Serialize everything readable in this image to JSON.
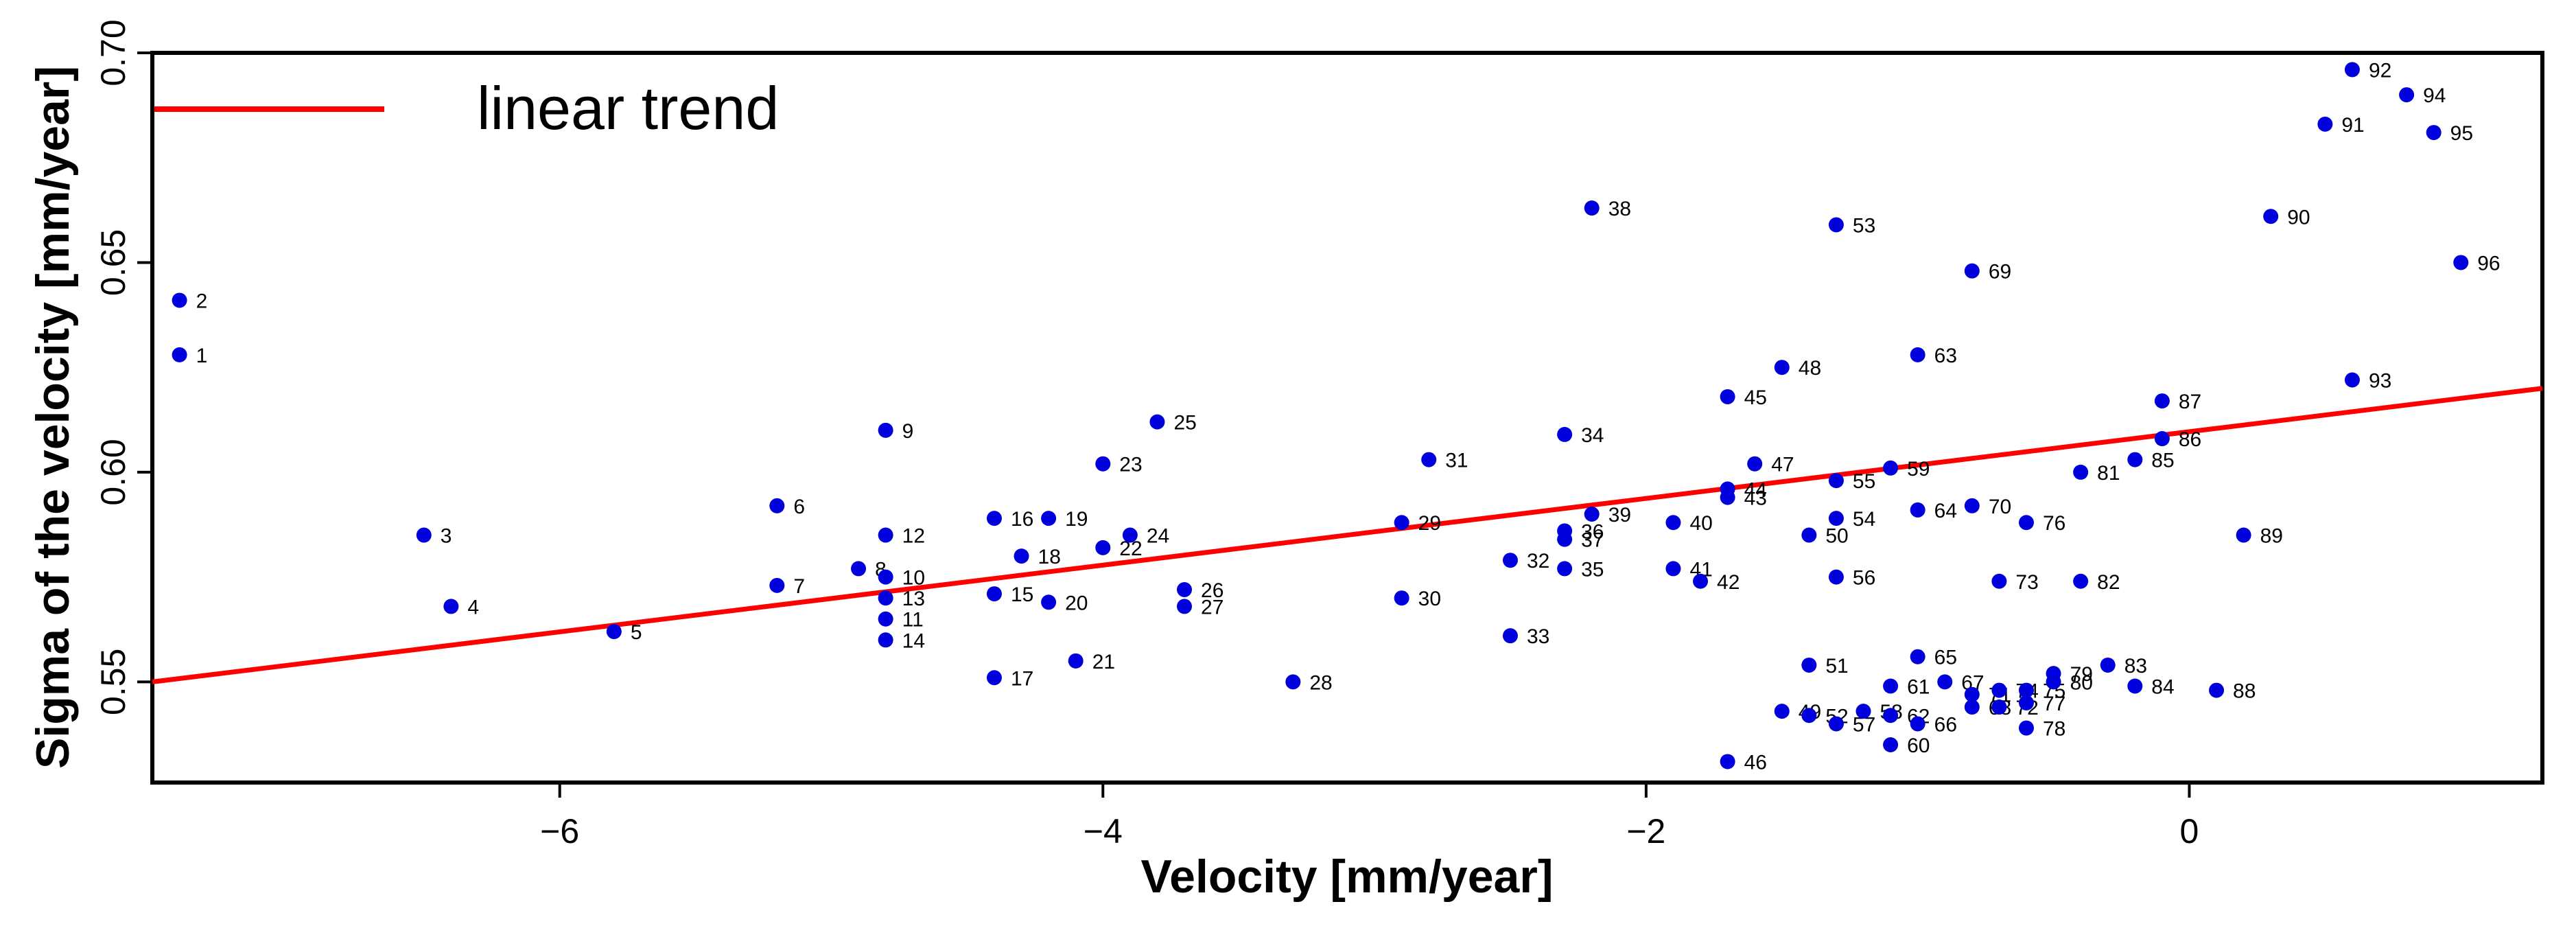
{
  "chart_data": {
    "type": "scatter",
    "title": "",
    "xlabel": "Velocity [mm/year]",
    "ylabel": "Sigma of the velocity [mm/year]",
    "xlim": [
      -7.5,
      1.3
    ],
    "ylim": [
      0.526,
      0.7
    ],
    "xticks": [
      -6,
      -4,
      -2,
      0
    ],
    "xtick_labels": [
      "−6",
      "−4",
      "−2",
      "0"
    ],
    "yticks": [
      0.55,
      0.6,
      0.65,
      0.7
    ],
    "ytick_labels": [
      "0.55",
      "0.60",
      "0.65",
      "0.70"
    ],
    "grid": false,
    "legend": {
      "position": "top-left",
      "entries": [
        {
          "label": "linear trend",
          "color": "#ff0000"
        }
      ]
    },
    "point_color": "#0000dd",
    "trend_color": "#ff0000",
    "trend": {
      "x": [
        -7.5,
        1.3
      ],
      "y": [
        0.55,
        0.62
      ]
    },
    "points": [
      {
        "label": "1",
        "x": -7.4,
        "y": 0.628
      },
      {
        "label": "2",
        "x": -7.4,
        "y": 0.641
      },
      {
        "label": "3",
        "x": -6.5,
        "y": 0.585
      },
      {
        "label": "4",
        "x": -6.4,
        "y": 0.568
      },
      {
        "label": "5",
        "x": -5.8,
        "y": 0.562
      },
      {
        "label": "6",
        "x": -5.2,
        "y": 0.592
      },
      {
        "label": "7",
        "x": -5.2,
        "y": 0.573
      },
      {
        "label": "8",
        "x": -4.9,
        "y": 0.577
      },
      {
        "label": "9",
        "x": -4.8,
        "y": 0.61
      },
      {
        "label": "10",
        "x": -4.8,
        "y": 0.575
      },
      {
        "label": "11",
        "x": -4.8,
        "y": 0.565
      },
      {
        "label": "12",
        "x": -4.8,
        "y": 0.585
      },
      {
        "label": "13",
        "x": -4.8,
        "y": 0.57
      },
      {
        "label": "14",
        "x": -4.8,
        "y": 0.56
      },
      {
        "label": "15",
        "x": -4.4,
        "y": 0.571
      },
      {
        "label": "16",
        "x": -4.4,
        "y": 0.589
      },
      {
        "label": "17",
        "x": -4.4,
        "y": 0.551
      },
      {
        "label": "18",
        "x": -4.3,
        "y": 0.58
      },
      {
        "label": "19",
        "x": -4.2,
        "y": 0.589
      },
      {
        "label": "20",
        "x": -4.2,
        "y": 0.569
      },
      {
        "label": "21",
        "x": -4.1,
        "y": 0.555
      },
      {
        "label": "22",
        "x": -4.0,
        "y": 0.582
      },
      {
        "label": "23",
        "x": -4.0,
        "y": 0.602
      },
      {
        "label": "24",
        "x": -3.9,
        "y": 0.585
      },
      {
        "label": "25",
        "x": -3.8,
        "y": 0.612
      },
      {
        "label": "26",
        "x": -3.7,
        "y": 0.572
      },
      {
        "label": "27",
        "x": -3.7,
        "y": 0.568
      },
      {
        "label": "28",
        "x": -3.3,
        "y": 0.55
      },
      {
        "label": "29",
        "x": -2.9,
        "y": 0.588
      },
      {
        "label": "30",
        "x": -2.9,
        "y": 0.57
      },
      {
        "label": "31",
        "x": -2.8,
        "y": 0.603
      },
      {
        "label": "32",
        "x": -2.5,
        "y": 0.579
      },
      {
        "label": "33",
        "x": -2.5,
        "y": 0.561
      },
      {
        "label": "34",
        "x": -2.3,
        "y": 0.609
      },
      {
        "label": "35",
        "x": -2.3,
        "y": 0.577
      },
      {
        "label": "36",
        "x": -2.3,
        "y": 0.586
      },
      {
        "label": "37",
        "x": -2.3,
        "y": 0.584
      },
      {
        "label": "38",
        "x": -2.2,
        "y": 0.663
      },
      {
        "label": "39",
        "x": -2.2,
        "y": 0.59
      },
      {
        "label": "40",
        "x": -1.9,
        "y": 0.588
      },
      {
        "label": "41",
        "x": -1.9,
        "y": 0.577
      },
      {
        "label": "42",
        "x": -1.8,
        "y": 0.574
      },
      {
        "label": "43",
        "x": -1.7,
        "y": 0.594
      },
      {
        "label": "44",
        "x": -1.7,
        "y": 0.596
      },
      {
        "label": "45",
        "x": -1.7,
        "y": 0.618
      },
      {
        "label": "46",
        "x": -1.7,
        "y": 0.531
      },
      {
        "label": "47",
        "x": -1.6,
        "y": 0.602
      },
      {
        "label": "48",
        "x": -1.5,
        "y": 0.625
      },
      {
        "label": "49",
        "x": -1.5,
        "y": 0.543
      },
      {
        "label": "50",
        "x": -1.4,
        "y": 0.585
      },
      {
        "label": "51",
        "x": -1.4,
        "y": 0.554
      },
      {
        "label": "52",
        "x": -1.4,
        "y": 0.542
      },
      {
        "label": "53",
        "x": -1.3,
        "y": 0.659
      },
      {
        "label": "54",
        "x": -1.3,
        "y": 0.589
      },
      {
        "label": "55",
        "x": -1.3,
        "y": 0.598
      },
      {
        "label": "56",
        "x": -1.3,
        "y": 0.575
      },
      {
        "label": "57",
        "x": -1.3,
        "y": 0.54
      },
      {
        "label": "58",
        "x": -1.2,
        "y": 0.543
      },
      {
        "label": "59",
        "x": -1.1,
        "y": 0.601
      },
      {
        "label": "60",
        "x": -1.1,
        "y": 0.535
      },
      {
        "label": "61",
        "x": -1.1,
        "y": 0.549
      },
      {
        "label": "62",
        "x": -1.1,
        "y": 0.542
      },
      {
        "label": "63",
        "x": -1.0,
        "y": 0.628
      },
      {
        "label": "64",
        "x": -1.0,
        "y": 0.591
      },
      {
        "label": "65",
        "x": -1.0,
        "y": 0.556
      },
      {
        "label": "66",
        "x": -1.0,
        "y": 0.54
      },
      {
        "label": "67",
        "x": -0.9,
        "y": 0.55
      },
      {
        "label": "68",
        "x": -0.8,
        "y": 0.544
      },
      {
        "label": "69",
        "x": -0.8,
        "y": 0.648
      },
      {
        "label": "70",
        "x": -0.8,
        "y": 0.592
      },
      {
        "label": "71",
        "x": -0.8,
        "y": 0.547
      },
      {
        "label": "72",
        "x": -0.7,
        "y": 0.544
      },
      {
        "label": "73",
        "x": -0.7,
        "y": 0.574
      },
      {
        "label": "74",
        "x": -0.7,
        "y": 0.548
      },
      {
        "label": "75",
        "x": -0.6,
        "y": 0.548
      },
      {
        "label": "76",
        "x": -0.6,
        "y": 0.588
      },
      {
        "label": "77",
        "x": -0.6,
        "y": 0.545
      },
      {
        "label": "78",
        "x": -0.6,
        "y": 0.539
      },
      {
        "label": "79",
        "x": -0.5,
        "y": 0.552
      },
      {
        "label": "80",
        "x": -0.5,
        "y": 0.55
      },
      {
        "label": "81",
        "x": -0.4,
        "y": 0.6
      },
      {
        "label": "82",
        "x": -0.4,
        "y": 0.574
      },
      {
        "label": "83",
        "x": -0.3,
        "y": 0.554
      },
      {
        "label": "84",
        "x": -0.2,
        "y": 0.549
      },
      {
        "label": "85",
        "x": -0.2,
        "y": 0.603
      },
      {
        "label": "86",
        "x": -0.1,
        "y": 0.608
      },
      {
        "label": "87",
        "x": -0.1,
        "y": 0.617
      },
      {
        "label": "88",
        "x": 0.1,
        "y": 0.548
      },
      {
        "label": "89",
        "x": 0.2,
        "y": 0.585
      },
      {
        "label": "90",
        "x": 0.3,
        "y": 0.661
      },
      {
        "label": "91",
        "x": 0.5,
        "y": 0.683
      },
      {
        "label": "92",
        "x": 0.6,
        "y": 0.696
      },
      {
        "label": "93",
        "x": 0.6,
        "y": 0.622
      },
      {
        "label": "94",
        "x": 0.8,
        "y": 0.69
      },
      {
        "label": "95",
        "x": 0.9,
        "y": 0.681
      },
      {
        "label": "96",
        "x": 1.0,
        "y": 0.65
      }
    ]
  }
}
